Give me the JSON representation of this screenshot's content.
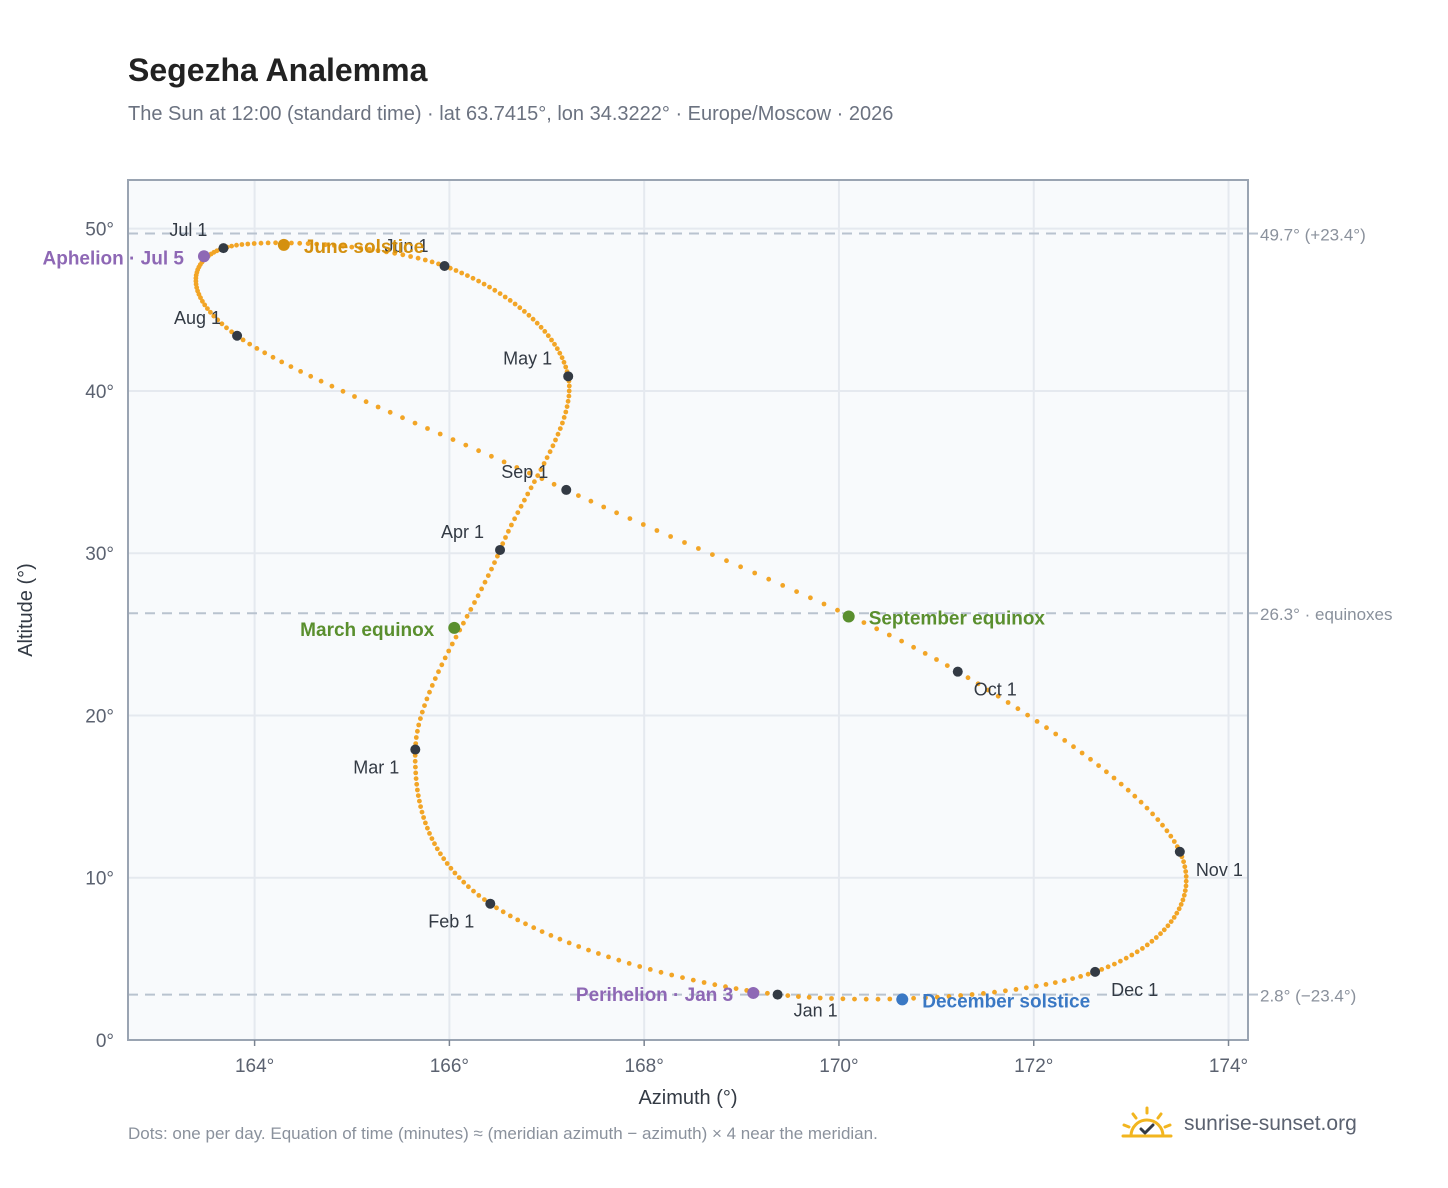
{
  "header": {
    "title": "Segezha Analemma",
    "subtitle": "The Sun at 12:00 (standard time) · lat 63.7415°, lon 34.3222° · Europe/Moscow · 2026"
  },
  "footer": {
    "note": "Dots: one per day. Equation of time (minutes) ≈ (meridian azimuth − azimuth) × 4 near the meridian.",
    "brand": "sunrise-sunset.org"
  },
  "colors": {
    "analemma": "#f2a526",
    "month_marker": "#333a44",
    "june_solstice": "#d4900f",
    "december_solstice": "#3a78c4",
    "equinox": "#5a8f2e",
    "apsis": "#8e68b5",
    "reference_line": "#b9c3cf",
    "grid": "#e5e9ef",
    "plot_background": "#f8fafc",
    "frame": "#9aa4b2"
  },
  "chart_data": {
    "type": "scatter",
    "xlabel": "Azimuth (°)",
    "ylabel": "Altitude (°)",
    "xlim": [
      162.7,
      174.2
    ],
    "ylim": [
      0,
      53
    ],
    "x_ticks": [
      164,
      166,
      168,
      170,
      172,
      174
    ],
    "x_tick_labels": [
      "164°",
      "166°",
      "168°",
      "170°",
      "172°",
      "174°"
    ],
    "y_ticks": [
      0,
      10,
      20,
      30,
      40,
      50
    ],
    "y_tick_labels": [
      "0°",
      "10°",
      "20°",
      "30°",
      "40°",
      "50°"
    ],
    "grid": true,
    "series": [
      {
        "marker": "one dot per day",
        "keypoints": [
          {
            "x": 169.37,
            "y": 2.8
          },
          {
            "x": 166.42,
            "y": 8.4
          },
          {
            "x": 165.65,
            "y": 17.9
          },
          {
            "x": 166.52,
            "y": 30.2
          },
          {
            "x": 167.22,
            "y": 40.9
          },
          {
            "x": 165.95,
            "y": 47.7
          },
          {
            "x": 163.68,
            "y": 48.8
          },
          {
            "x": 163.82,
            "y": 43.4
          },
          {
            "x": 167.2,
            "y": 33.9
          },
          {
            "x": 171.22,
            "y": 22.7
          },
          {
            "x": 173.5,
            "y": 11.6
          },
          {
            "x": 172.63,
            "y": 4.2
          },
          {
            "x": 169.37,
            "y": 2.8
          }
        ]
      }
    ],
    "month_markers": [
      {
        "label": "Jan 1",
        "x": 169.37,
        "y": 2.8
      },
      {
        "label": "Feb 1",
        "x": 166.42,
        "y": 8.4
      },
      {
        "label": "Mar 1",
        "x": 165.65,
        "y": 17.9
      },
      {
        "label": "Apr 1",
        "x": 166.52,
        "y": 30.2
      },
      {
        "label": "May 1",
        "x": 167.22,
        "y": 40.9
      },
      {
        "label": "Jun 1",
        "x": 165.95,
        "y": 47.7
      },
      {
        "label": "Jul 1",
        "x": 163.68,
        "y": 48.8
      },
      {
        "label": "Aug 1",
        "x": 163.82,
        "y": 43.4
      },
      {
        "label": "Sep 1",
        "x": 167.2,
        "y": 33.9
      },
      {
        "label": "Oct 1",
        "x": 171.22,
        "y": 22.7
      },
      {
        "label": "Nov 1",
        "x": 173.5,
        "y": 11.6
      },
      {
        "label": "Dec 1",
        "x": 172.63,
        "y": 4.2
      }
    ],
    "events": [
      {
        "label": "June solstice",
        "x": 164.3,
        "y": 49.0,
        "color": "#d4900f"
      },
      {
        "label": "December solstice",
        "x": 170.65,
        "y": 2.5,
        "color": "#3a78c4"
      },
      {
        "label": "March equinox",
        "x": 166.05,
        "y": 25.4,
        "color": "#5a8f2e"
      },
      {
        "label": "September equinox",
        "x": 170.1,
        "y": 26.1,
        "color": "#5a8f2e"
      },
      {
        "label": "Aphelion · Jul 5",
        "x": 163.48,
        "y": 48.3,
        "color": "#8e68b5"
      },
      {
        "label": "Perihelion · Jan 3",
        "x": 169.12,
        "y": 2.9,
        "color": "#8e68b5"
      }
    ],
    "reference_lines": [
      {
        "y": 49.7,
        "label": "49.7° (+23.4°)"
      },
      {
        "y": 26.3,
        "label": "26.3° · equinoxes"
      },
      {
        "y": 2.8,
        "label": "2.8° (−23.4°)"
      }
    ]
  }
}
